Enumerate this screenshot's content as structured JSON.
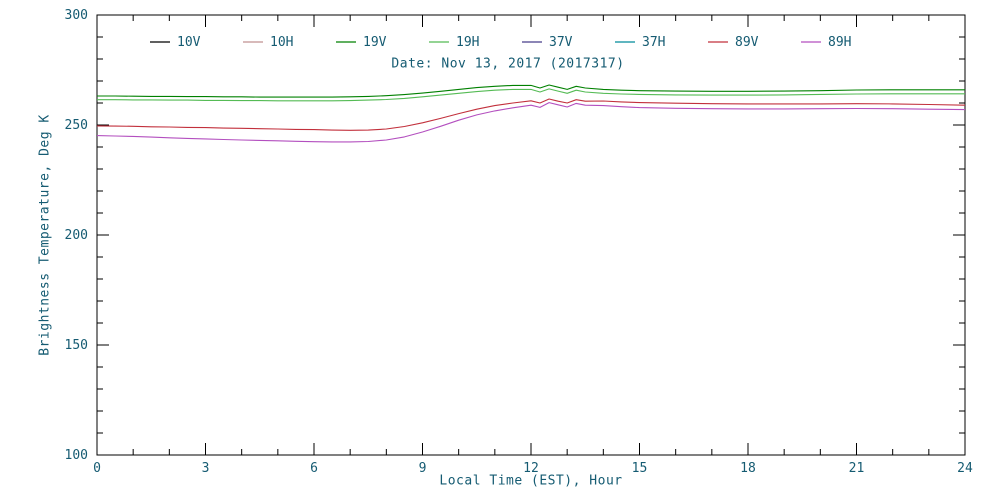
{
  "chart_data": {
    "type": "line",
    "title": "",
    "subtitle": "Date: Nov 13, 2017 (2017317)",
    "xlabel": "Local Time (EST), Hour",
    "ylabel": "Brightness Temperature, Deg K",
    "xlim": [
      0,
      24
    ],
    "ylim": [
      100,
      300
    ],
    "x_major_ticks": [
      0,
      3,
      6,
      9,
      12,
      15,
      18,
      21,
      24
    ],
    "x_minor_step": 1,
    "y_major_ticks": [
      100,
      150,
      200,
      250,
      300
    ],
    "y_minor_step": 10,
    "grid": false,
    "legend_position": "top-inside",
    "axis_color": "#000000",
    "text_color": "#155b72",
    "legend": [
      {
        "label": "10V",
        "color": "#000000"
      },
      {
        "label": "10H",
        "color": "#c09090"
      },
      {
        "label": "19V",
        "color": "#008000"
      },
      {
        "label": "19H",
        "color": "#55bb55"
      },
      {
        "label": "37V",
        "color": "#483d8b"
      },
      {
        "label": "37H",
        "color": "#008b9b"
      },
      {
        "label": "89V",
        "color": "#c2303c"
      },
      {
        "label": "89H",
        "color": "#b34fbf"
      }
    ],
    "x": [
      0,
      0.5,
      1,
      1.5,
      2,
      2.5,
      3,
      3.5,
      4,
      4.5,
      5,
      5.5,
      6,
      6.5,
      7,
      7.5,
      8,
      8.5,
      9,
      9.5,
      10,
      10.5,
      11,
      11.5,
      12,
      12.25,
      12.5,
      12.75,
      13,
      13.25,
      13.5,
      14,
      14.5,
      15,
      16,
      17,
      18,
      19,
      20,
      21,
      22,
      23,
      24
    ],
    "series": [
      {
        "name": "10V",
        "color": "#000000",
        "visible": false,
        "values": []
      },
      {
        "name": "10H",
        "color": "#c09090",
        "visible": false,
        "values": []
      },
      {
        "name": "19V",
        "color": "#008000",
        "visible": true,
        "values": [
          263.2,
          263.2,
          263.1,
          263.0,
          263.0,
          262.9,
          262.9,
          262.8,
          262.8,
          262.7,
          262.7,
          262.7,
          262.7,
          262.7,
          262.8,
          263.0,
          263.3,
          263.8,
          264.5,
          265.3,
          266.2,
          267.0,
          267.6,
          268.0,
          268.0,
          266.8,
          268.2,
          267.2,
          266.2,
          267.6,
          266.8,
          266.2,
          265.8,
          265.6,
          265.4,
          265.3,
          265.3,
          265.4,
          265.6,
          265.9,
          266.0,
          266.0,
          266.0
        ]
      },
      {
        "name": "19H",
        "color": "#55bb55",
        "visible": true,
        "values": [
          261.5,
          261.5,
          261.4,
          261.4,
          261.3,
          261.3,
          261.2,
          261.2,
          261.1,
          261.1,
          261.0,
          261.0,
          261.0,
          261.0,
          261.1,
          261.3,
          261.6,
          262.1,
          262.8,
          263.6,
          264.4,
          265.2,
          265.8,
          266.2,
          266.2,
          265.0,
          266.4,
          265.4,
          264.4,
          265.8,
          265.0,
          264.4,
          264.1,
          263.9,
          263.7,
          263.6,
          263.6,
          263.7,
          263.9,
          264.1,
          264.2,
          264.2,
          264.2
        ]
      },
      {
        "name": "37V",
        "color": "#483d8b",
        "visible": false,
        "values": []
      },
      {
        "name": "37H",
        "color": "#008b9b",
        "visible": false,
        "values": []
      },
      {
        "name": "89V",
        "color": "#c2303c",
        "visible": true,
        "values": [
          249.6,
          249.5,
          249.4,
          249.2,
          249.1,
          248.9,
          248.8,
          248.6,
          248.5,
          248.3,
          248.2,
          248.0,
          247.9,
          247.7,
          247.6,
          247.7,
          248.2,
          249.3,
          251.0,
          253.0,
          255.2,
          257.2,
          258.8,
          260.0,
          261.0,
          260.0,
          261.8,
          260.8,
          260.0,
          261.5,
          260.8,
          260.9,
          260.5,
          260.2,
          259.9,
          259.7,
          259.6,
          259.6,
          259.6,
          259.7,
          259.6,
          259.3,
          259.0
        ]
      },
      {
        "name": "89H",
        "color": "#b34fbf",
        "visible": true,
        "values": [
          245.2,
          245.0,
          244.8,
          244.5,
          244.2,
          243.9,
          243.7,
          243.4,
          243.2,
          243.0,
          242.8,
          242.6,
          242.4,
          242.3,
          242.3,
          242.5,
          243.2,
          244.6,
          246.8,
          249.4,
          252.2,
          254.6,
          256.4,
          257.8,
          259.0,
          258.0,
          260.2,
          259.2,
          258.2,
          259.8,
          259.0,
          258.8,
          258.3,
          257.9,
          257.6,
          257.4,
          257.3,
          257.3,
          257.4,
          257.5,
          257.4,
          257.2,
          257.0
        ]
      }
    ]
  }
}
